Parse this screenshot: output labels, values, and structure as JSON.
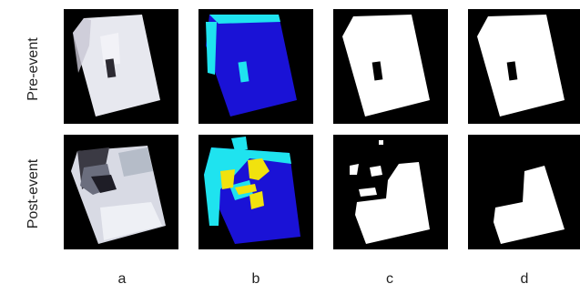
{
  "figure": {
    "rows": [
      {
        "label": "Pre-event"
      },
      {
        "label": "Post-event"
      }
    ],
    "columns": [
      {
        "label": "a"
      },
      {
        "label": "b"
      },
      {
        "label": "c"
      },
      {
        "label": "d"
      }
    ],
    "colors": {
      "background": "#000000",
      "building_blue": "#1a12d6",
      "cyan": "#1fe3ef",
      "yellow": "#f1e20e",
      "mask_white": "#ffffff",
      "photo_white": "#e7e8ef"
    }
  }
}
